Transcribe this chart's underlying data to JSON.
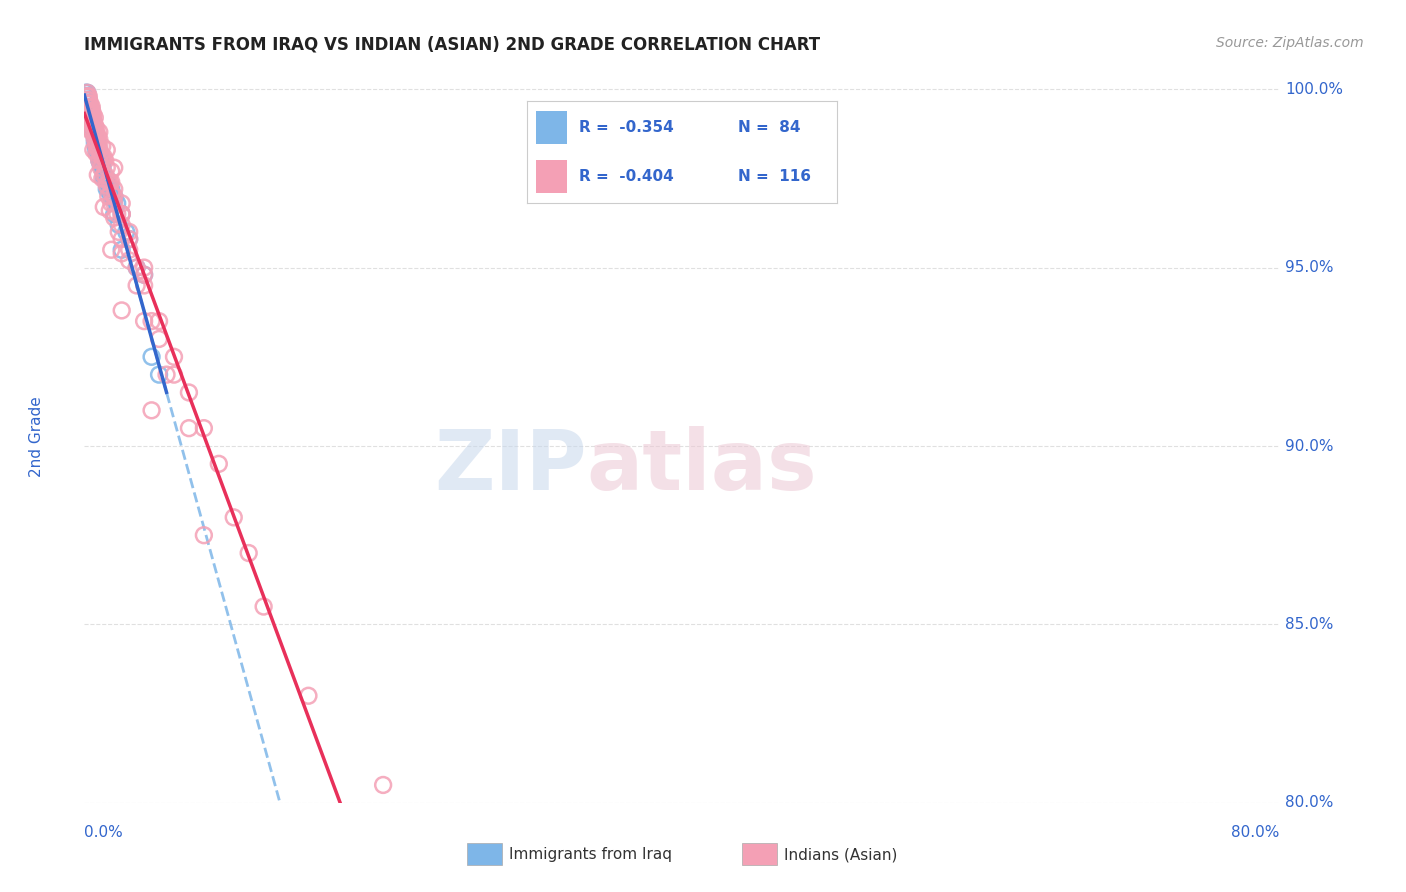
{
  "title": "IMMIGRANTS FROM IRAQ VS INDIAN (ASIAN) 2ND GRADE CORRELATION CHART",
  "source": "Source: ZipAtlas.com",
  "ylabel": "2nd Grade",
  "x_min": 0.0,
  "x_max": 80.0,
  "y_min": 80.0,
  "y_max": 100.5,
  "yticks": [
    80.0,
    85.0,
    90.0,
    95.0,
    100.0
  ],
  "legend_r_iraq": "-0.354",
  "legend_n_iraq": "84",
  "legend_r_indian": "-0.404",
  "legend_n_indian": "116",
  "legend_labels": [
    "Immigrants from Iraq",
    "Indians (Asian)"
  ],
  "blue_color": "#7EB6E8",
  "pink_color": "#F4A0B5",
  "blue_line_color": "#3366CC",
  "pink_line_color": "#E8305A",
  "dashed_line_color": "#7EB6E8",
  "tick_color": "#3366CC",
  "background_color": "#FFFFFF",
  "grid_color": "#DDDDDD",
  "iraq_x": [
    0.3,
    0.5,
    0.7,
    0.2,
    0.4,
    0.6,
    0.1,
    0.8,
    1.0,
    0.3,
    0.5,
    0.2,
    0.4,
    0.6,
    0.8,
    1.2,
    0.1,
    0.3,
    0.5,
    0.7,
    1.5,
    0.2,
    0.4,
    0.6,
    1.0,
    1.8,
    0.3,
    0.5,
    0.7,
    2.0,
    0.2,
    0.4,
    0.8,
    1.2,
    1.6,
    0.3,
    0.6,
    0.9,
    1.3,
    2.5,
    0.4,
    0.7,
    1.1,
    1.8,
    0.2,
    0.5,
    0.8,
    1.5,
    2.2,
    0.3,
    0.6,
    1.0,
    1.6,
    3.0,
    0.4,
    0.7,
    1.2,
    2.0,
    0.2,
    0.5,
    0.9,
    1.4,
    2.8,
    0.3,
    0.6,
    1.1,
    2.3,
    4.0,
    0.4,
    0.8,
    1.3,
    2.5,
    0.2,
    0.5,
    1.0,
    1.8,
    3.5,
    0.3,
    0.7,
    1.5,
    2.0,
    5.0,
    0.4,
    4.5
  ],
  "iraq_y": [
    99.5,
    99.2,
    98.8,
    99.7,
    99.3,
    99.1,
    99.8,
    98.5,
    98.2,
    99.6,
    99.4,
    99.0,
    99.2,
    98.8,
    98.4,
    97.8,
    99.9,
    99.5,
    99.1,
    98.7,
    97.5,
    99.8,
    99.3,
    98.9,
    98.1,
    97.2,
    99.6,
    99.2,
    98.6,
    97.0,
    99.9,
    99.4,
    98.3,
    97.9,
    97.3,
    99.7,
    99.0,
    98.5,
    97.6,
    96.5,
    99.5,
    98.8,
    98.0,
    97.1,
    99.8,
    99.2,
    98.4,
    97.4,
    96.8,
    99.6,
    98.9,
    98.2,
    97.2,
    95.8,
    99.4,
    98.7,
    97.8,
    96.9,
    99.7,
    99.1,
    98.3,
    97.5,
    96.0,
    99.5,
    98.8,
    97.9,
    96.2,
    94.8,
    99.3,
    98.4,
    97.5,
    95.5,
    99.6,
    98.9,
    98.0,
    97.0,
    95.0,
    99.4,
    98.5,
    97.2,
    96.5,
    92.0,
    99.2,
    92.5
  ],
  "indian_x": [
    0.3,
    0.5,
    0.7,
    1.0,
    1.5,
    2.0,
    0.2,
    0.4,
    0.6,
    0.8,
    1.2,
    1.8,
    2.5,
    0.3,
    0.5,
    0.7,
    1.0,
    1.4,
    2.0,
    3.0,
    0.2,
    0.4,
    0.6,
    0.9,
    1.3,
    1.8,
    2.5,
    4.0,
    0.3,
    0.5,
    0.7,
    1.0,
    1.5,
    2.0,
    3.0,
    5.0,
    0.2,
    0.4,
    0.6,
    0.8,
    1.2,
    1.6,
    2.2,
    3.5,
    0.3,
    0.5,
    0.8,
    1.1,
    1.7,
    2.5,
    4.0,
    6.0,
    0.2,
    0.4,
    0.7,
    1.0,
    1.4,
    2.0,
    3.0,
    5.5,
    0.3,
    0.5,
    0.8,
    1.2,
    1.8,
    2.5,
    4.0,
    7.0,
    0.2,
    0.4,
    0.6,
    0.9,
    1.3,
    1.8,
    2.5,
    4.5,
    8.0,
    0.3,
    0.5,
    0.8,
    1.1,
    1.6,
    2.3,
    3.5,
    6.0,
    10.0,
    0.2,
    0.4,
    0.7,
    1.0,
    1.5,
    2.0,
    3.0,
    5.0,
    9.0,
    12.0,
    0.3,
    0.5,
    0.8,
    1.2,
    1.7,
    2.5,
    4.0,
    7.0,
    11.0,
    15.0,
    0.2,
    0.4,
    0.6,
    0.9,
    1.3,
    1.8,
    2.5,
    4.5,
    8.0,
    20.0
  ],
  "indian_y": [
    99.8,
    99.5,
    99.2,
    98.8,
    98.3,
    97.8,
    99.9,
    99.6,
    99.3,
    98.9,
    98.4,
    97.7,
    96.8,
    99.7,
    99.4,
    99.0,
    98.6,
    98.0,
    97.2,
    96.0,
    99.8,
    99.5,
    99.1,
    98.7,
    98.1,
    97.4,
    96.5,
    94.5,
    99.6,
    99.3,
    98.9,
    98.4,
    97.8,
    97.0,
    95.8,
    93.5,
    99.8,
    99.5,
    99.1,
    98.7,
    98.1,
    97.4,
    96.5,
    95.0,
    99.6,
    99.2,
    98.7,
    98.2,
    97.4,
    96.5,
    95.0,
    92.5,
    99.7,
    99.3,
    98.8,
    98.3,
    97.6,
    96.8,
    95.5,
    92.0,
    99.5,
    99.1,
    98.5,
    98.0,
    97.1,
    96.2,
    94.8,
    91.5,
    99.6,
    99.2,
    98.8,
    98.3,
    97.6,
    96.8,
    95.8,
    93.5,
    90.5,
    99.4,
    99.0,
    98.4,
    97.8,
    97.0,
    96.0,
    94.5,
    92.0,
    88.0,
    99.5,
    99.1,
    98.6,
    98.0,
    97.3,
    96.4,
    95.2,
    93.0,
    89.5,
    85.5,
    99.3,
    98.8,
    98.2,
    97.5,
    96.6,
    95.4,
    93.5,
    90.5,
    87.0,
    83.0,
    99.4,
    98.9,
    98.3,
    97.6,
    96.7,
    95.5,
    93.8,
    91.0,
    87.5,
    80.5
  ]
}
